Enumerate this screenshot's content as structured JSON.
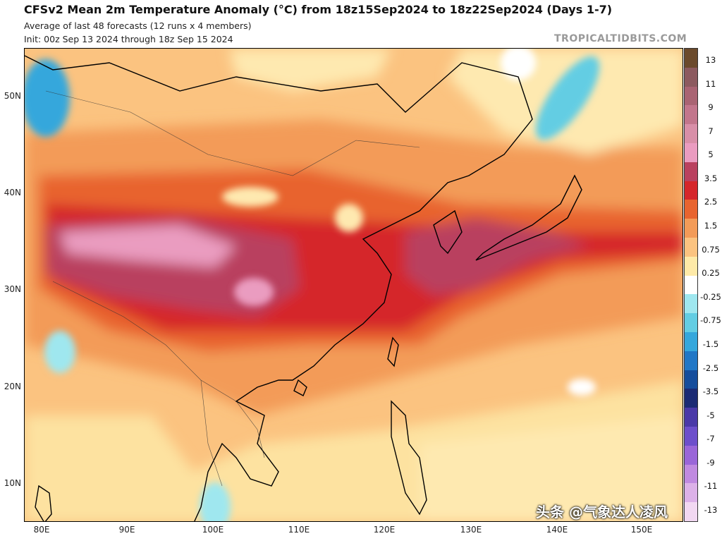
{
  "header": {
    "title": "CFSv2 Mean 2m Temperature Anomaly (°C) from 18z15Sep2024 to 18z22Sep2024 (Days 1-7)",
    "subtitle_1": "Average of last 48 forecasts (12 runs x 4 members)",
    "subtitle_2": "Init: 00z Sep 13 2024 through 18z Sep 15 2024",
    "credit": "TROPICALTIDBITS.COM"
  },
  "axes": {
    "lat_labels": [
      "50N",
      "40N",
      "30N",
      "20N",
      "10N"
    ],
    "lon_labels": [
      "80E",
      "90E",
      "100E",
      "110E",
      "120E",
      "130E",
      "140E",
      "150E"
    ]
  },
  "colorbar": {
    "labels": [
      "13",
      "11",
      "9",
      "7",
      "5",
      "3.5",
      "2.5",
      "1.5",
      "0.75",
      "0.25",
      "-0.25",
      "-0.75",
      "-1.5",
      "-2.5",
      "-3.5",
      "-5",
      "-7",
      "-9",
      "-11",
      "-13"
    ],
    "colors": [
      "#6b4a2c",
      "#8c5a5f",
      "#a96473",
      "#c2768c",
      "#d88fa8",
      "#ea9cc0",
      "#b9415f",
      "#d5262b",
      "#e8642f",
      "#f39b58",
      "#fbc380",
      "#feeaa8",
      "#ffffff",
      "#9fe7ef",
      "#63cde3",
      "#35a7dc",
      "#2177c6",
      "#154d9c",
      "#1b2b74",
      "#4a39a8",
      "#6d4fcb",
      "#9a66d8",
      "#c08ae0",
      "#dcb1e8",
      "#f2d8f2"
    ]
  },
  "map": {
    "dominant_field": "warm anomalies across East Asia",
    "water_color": "#fce4a6"
  },
  "watermark": "头条 @气象达人凌风"
}
